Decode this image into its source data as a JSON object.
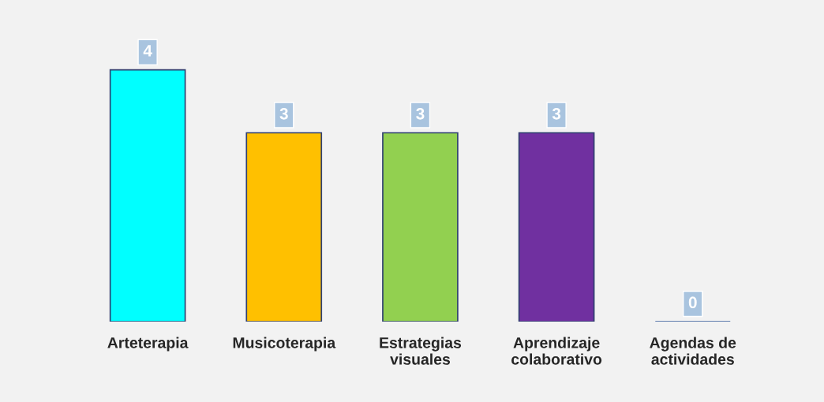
{
  "chart_data": {
    "type": "bar",
    "categories": [
      "Arteterapia",
      "Musicoterapia",
      "Estrategias visuales",
      "Aprendizaje colaborativo",
      "Agendas de actividades"
    ],
    "values": [
      4,
      3,
      3,
      3,
      0
    ],
    "colors": [
      "#00ffff",
      "#ffc000",
      "#92d050",
      "#7030a0",
      "#2f5597"
    ],
    "data_labels": true,
    "grid": false
  }
}
